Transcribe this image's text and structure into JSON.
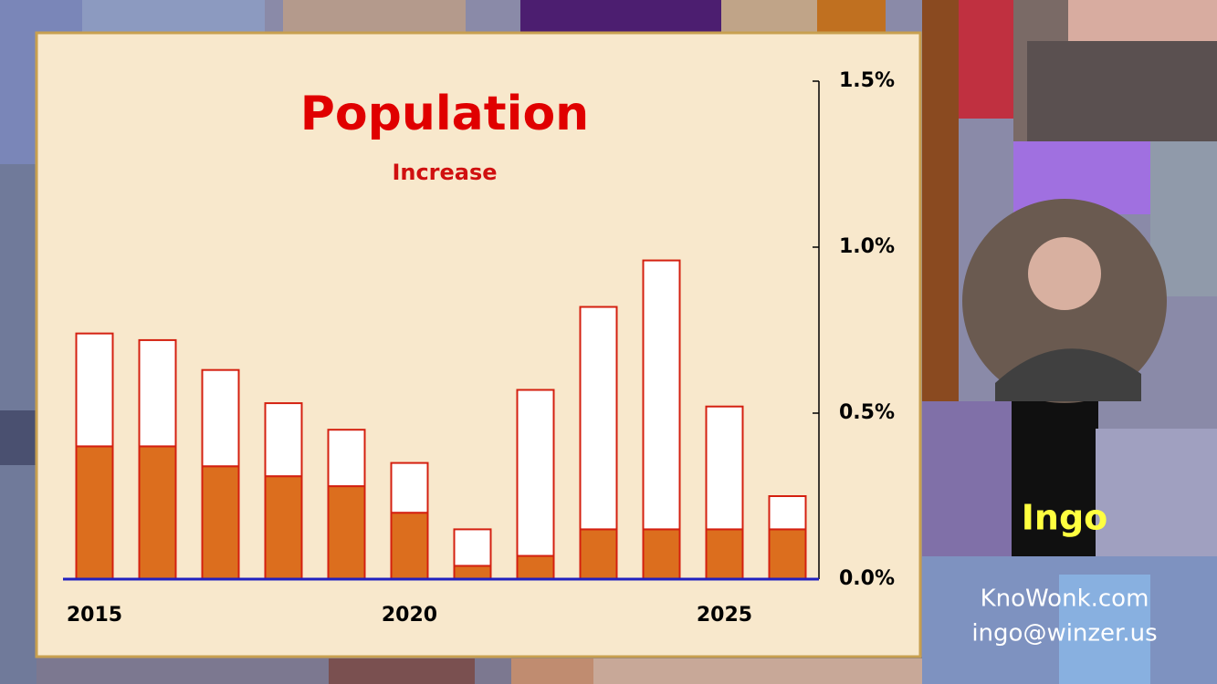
{
  "chart_data": {
    "type": "stacked-bar",
    "title": "Population",
    "subtitle": "Increase",
    "categories": [
      "2015",
      null,
      null,
      null,
      null,
      "2020",
      null,
      null,
      null,
      null,
      "2025",
      null
    ],
    "series": [
      {
        "color": "#dc6e1e",
        "values": [
          0.4,
          0.4,
          0.34,
          0.31,
          0.28,
          0.2,
          0.04,
          0.07,
          0.15,
          0.15,
          0.15,
          0.15
        ]
      },
      {
        "color": "#ffffff",
        "values": [
          0.34,
          0.32,
          0.29,
          0.22,
          0.17,
          0.15,
          0.11,
          0.5,
          0.67,
          0.81,
          0.37,
          0.1
        ]
      }
    ],
    "ylim": [
      0,
      1.5
    ],
    "yticks": [
      {
        "value": 0,
        "label": "0.0%"
      },
      {
        "value": 0.5,
        "label": "0.5%"
      },
      {
        "value": 1.0,
        "label": "1.0%"
      },
      {
        "value": 1.5,
        "label": "1.5%"
      }
    ],
    "y_axis_side": "right",
    "bar_outline": "#d42010",
    "baseline_color": "#2020c0"
  },
  "overlay": {
    "name": "Ingo",
    "website": "KnoWonk.com",
    "email": "ingo@winzer.us"
  }
}
